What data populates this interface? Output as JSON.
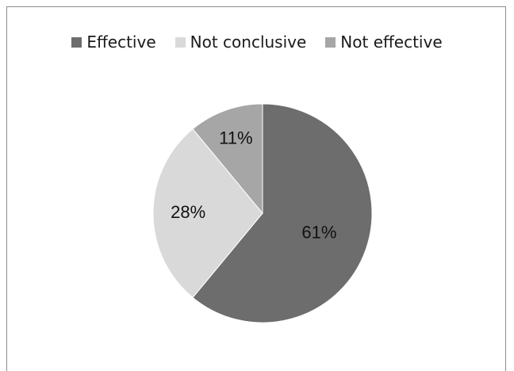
{
  "chart_data": {
    "type": "pie",
    "title": "",
    "legend_position": "top",
    "categories": [
      "Effective",
      "Not conclusive",
      "Not effective"
    ],
    "values": [
      61,
      28,
      11
    ],
    "labels": [
      "61%",
      "28%",
      "11%"
    ],
    "colors": [
      "#6d6d6d",
      "#d9d9d9",
      "#a6a6a6"
    ],
    "start_angle_deg": 0,
    "direction": "clockwise"
  }
}
